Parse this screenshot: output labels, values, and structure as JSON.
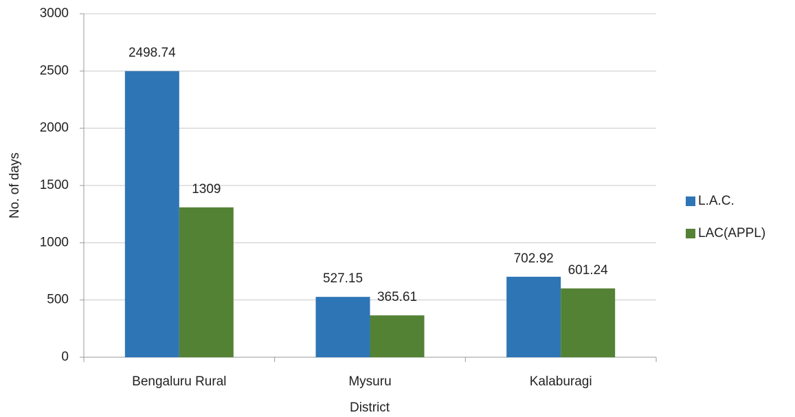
{
  "chart_data": {
    "type": "bar",
    "x_label": "District",
    "y_label": "No. of days",
    "categories": [
      "Bengaluru Rural",
      "Mysuru",
      "Kalaburagi"
    ],
    "series": [
      {
        "name": "L.A.C.",
        "color": "#2e75b6",
        "values": [
          2498.74,
          527.15,
          702.92
        ]
      },
      {
        "name": "LAC(APPL)",
        "color": "#548235",
        "values": [
          1309,
          365.61,
          601.24
        ]
      }
    ],
    "ylim": [
      0,
      3000
    ],
    "yticks": [
      0,
      500,
      1000,
      1500,
      2000,
      2500,
      3000
    ],
    "grid": true,
    "legend": "right",
    "data_labels": true
  }
}
